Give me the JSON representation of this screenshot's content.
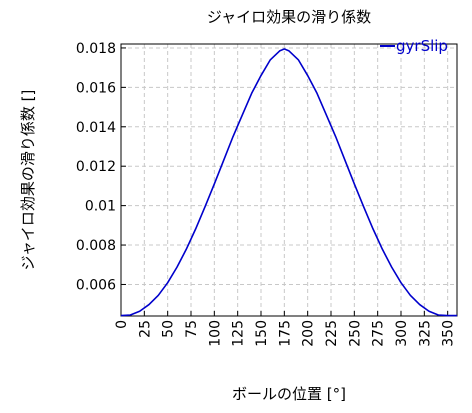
{
  "chart_data": {
    "type": "line",
    "title": "ジャイロ効果の滑り係数",
    "xlabel": "ボールの位置 [°]",
    "ylabel": "ジャイロ効果の滑り係数 []",
    "xlim": [
      0,
      360
    ],
    "ylim": [
      0.0044,
      0.0182
    ],
    "xticks": [
      0,
      25,
      50,
      75,
      100,
      125,
      150,
      175,
      200,
      225,
      250,
      275,
      300,
      325,
      350
    ],
    "yticks": [
      0.006,
      0.008,
      0.01,
      0.012,
      0.014,
      0.016,
      0.018
    ],
    "ytick_labels": [
      "0.006",
      "0.008",
      "0.01",
      "0.012",
      "0.014",
      "0.016",
      "0.018"
    ],
    "grid": true,
    "legend_position": "top-right",
    "series": [
      {
        "name": "gyrSlip",
        "color": "#0000cc",
        "x": [
          0,
          10,
          20,
          30,
          40,
          50,
          60,
          70,
          80,
          90,
          100,
          110,
          120,
          130,
          140,
          150,
          160,
          170,
          175,
          180,
          190,
          200,
          210,
          220,
          230,
          240,
          250,
          260,
          270,
          280,
          290,
          300,
          310,
          320,
          330,
          340,
          350,
          360
        ],
        "y": [
          0.00442,
          0.00445,
          0.00464,
          0.00498,
          0.00545,
          0.00609,
          0.00688,
          0.00779,
          0.00882,
          0.00994,
          0.0111,
          0.0123,
          0.0135,
          0.0146,
          0.0157,
          0.0166,
          0.0174,
          0.01785,
          0.01795,
          0.01785,
          0.0174,
          0.0166,
          0.0157,
          0.0146,
          0.0135,
          0.0123,
          0.0111,
          0.00994,
          0.00882,
          0.00779,
          0.00688,
          0.00609,
          0.00545,
          0.00498,
          0.00464,
          0.00445,
          0.00442,
          0.00442
        ]
      }
    ]
  }
}
